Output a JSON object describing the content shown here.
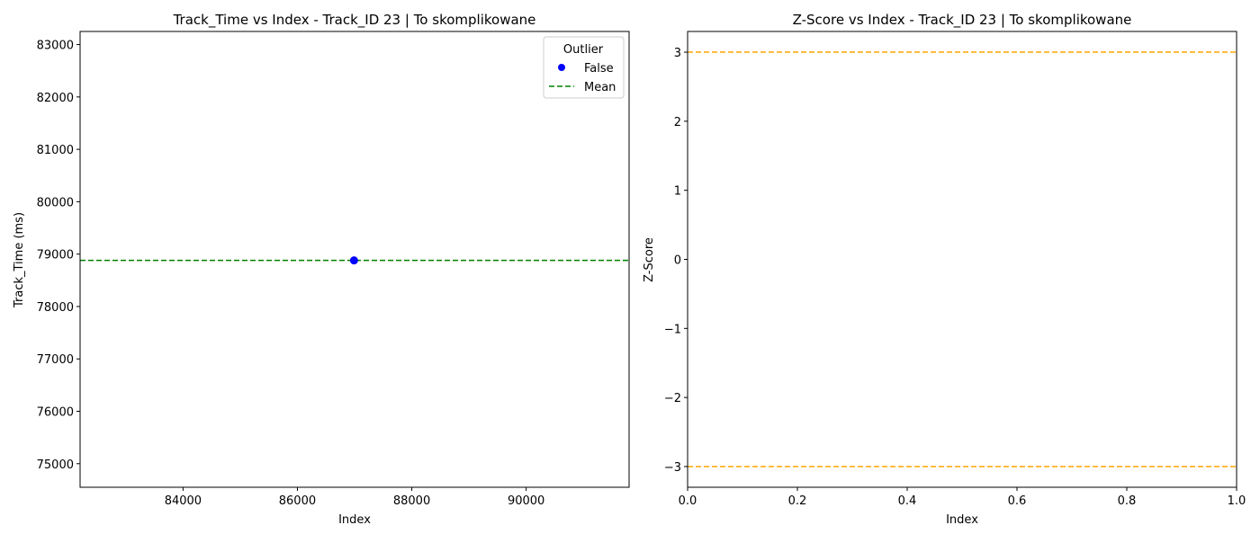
{
  "chart_data": [
    {
      "type": "scatter",
      "title": "Track_Time vs Index - Track_ID 23 | To skomplikowane",
      "xlabel": "Index",
      "ylabel": "Track_Time (ms)",
      "xlim": [
        82200,
        91800
      ],
      "ylim": [
        74550,
        83250
      ],
      "xticks": [
        84000,
        86000,
        88000,
        90000
      ],
      "yticks": [
        75000,
        76000,
        77000,
        78000,
        79000,
        80000,
        81000,
        82000,
        83000
      ],
      "grid": false,
      "series": [
        {
          "name": "False",
          "color": "#0000ff",
          "points": [
            {
              "x": 86990,
              "y": 78880
            }
          ]
        }
      ],
      "mean_line": {
        "name": "Mean",
        "y": 78880,
        "color": "#008000",
        "style": "dashed"
      },
      "legend": {
        "title": "Outlier",
        "placement": "top-right"
      }
    },
    {
      "type": "scatter",
      "title": "Z-Score vs Index - Track_ID 23 | To skomplikowane",
      "xlabel": "Index",
      "ylabel": "Z-Score",
      "xlim": [
        0.0,
        1.0
      ],
      "ylim": [
        -3.3,
        3.3
      ],
      "xticks": [
        0.0,
        0.2,
        0.4,
        0.6,
        0.8,
        1.0
      ],
      "yticks": [
        -3,
        -2,
        -1,
        0,
        1,
        2,
        3
      ],
      "grid": false,
      "series": [],
      "threshold_lines": [
        {
          "y": 3,
          "color": "#ffa500",
          "style": "dashed"
        },
        {
          "y": -3,
          "color": "#ffa500",
          "style": "dashed"
        }
      ]
    }
  ]
}
